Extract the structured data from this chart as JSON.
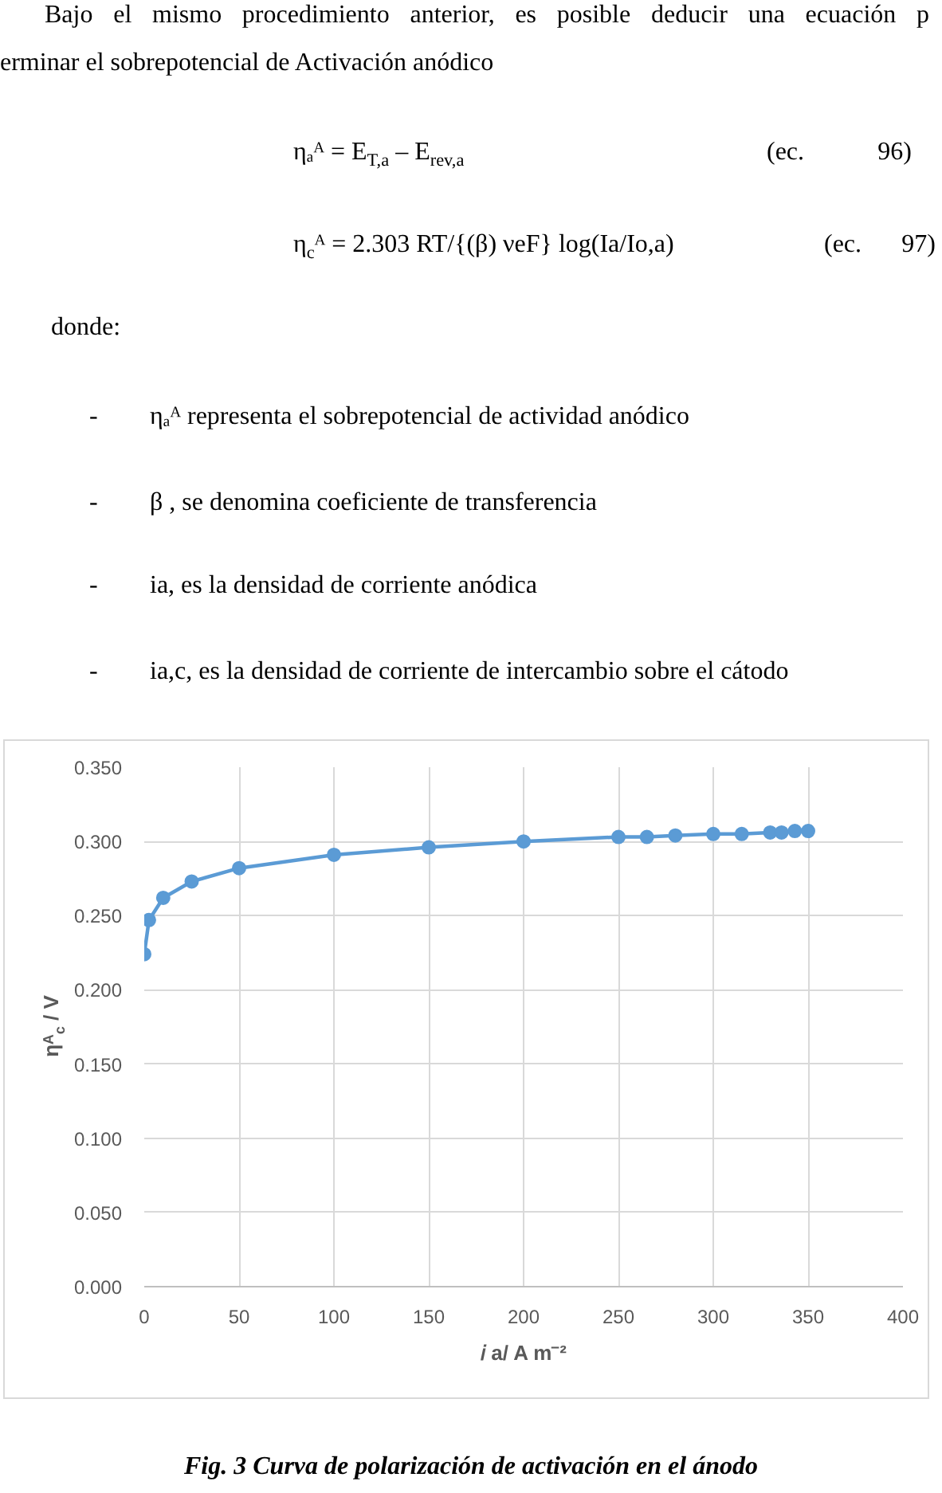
{
  "chart_data": {
    "type": "line",
    "x": [
      0,
      2.5,
      10,
      25,
      50,
      100,
      150,
      200,
      250,
      265,
      280,
      300,
      315,
      330,
      336,
      343,
      350
    ],
    "series": [
      {
        "color": "#5b9bd5",
        "values": [
          0.224,
          0.247,
          0.262,
          0.273,
          0.282,
          0.291,
          0.296,
          0.3,
          0.303,
          0.303,
          0.304,
          0.305,
          0.305,
          0.306,
          0.306,
          0.307,
          0.307
        ]
      }
    ],
    "marker": "circle",
    "line_style": "solid",
    "grid": true,
    "xlim": [
      0,
      400
    ],
    "ylim": [
      0,
      0.35
    ],
    "xticks": [
      0,
      50,
      100,
      150,
      200,
      250,
      300,
      350,
      400
    ],
    "yticks": [
      {
        "value": 0,
        "label": "0.000"
      },
      {
        "value": 0.05,
        "label": "0.050"
      },
      {
        "value": 0.1,
        "label": "0.100"
      },
      {
        "value": 0.15,
        "label": "0.150"
      },
      {
        "value": 0.2,
        "label": "0.200"
      },
      {
        "value": 0.25,
        "label": "0.250"
      },
      {
        "value": 0.3,
        "label": "0.300"
      },
      {
        "value": 0.35,
        "label": "0.350"
      }
    ],
    "xlabel": "𝑖 a/ A m⁻²",
    "ylabel": "ηᴬ$_{c}$ / V",
    "annotations": [
      "Bajo el mismo procedimiento anterior, es posible deducir una ecuación p",
      "erminar el sobrepotencial de Activación anódico",
      "ηₐᴬ = E$_{T,a}$ – E$_{rev,a}$",
      "(ec. 96)",
      "η$_{c}$ᴬ = 2.303 RT/{(β) νeF} log(Ia/Io,a)",
      "(ec. 97)",
      "donde:",
      "-",
      "ηₐᴬ representa el sobrepotencial de actividad anódico",
      "-",
      "β , se denomina coeficiente de transferencia",
      "-",
      "ia, es la densidad de corriente anódica",
      "-",
      "ia,c, es la densidad de corriente de intercambio sobre el cátodo",
      "Fig. 3 Curva de polarización de activación en el ánodo"
    ]
  }
}
